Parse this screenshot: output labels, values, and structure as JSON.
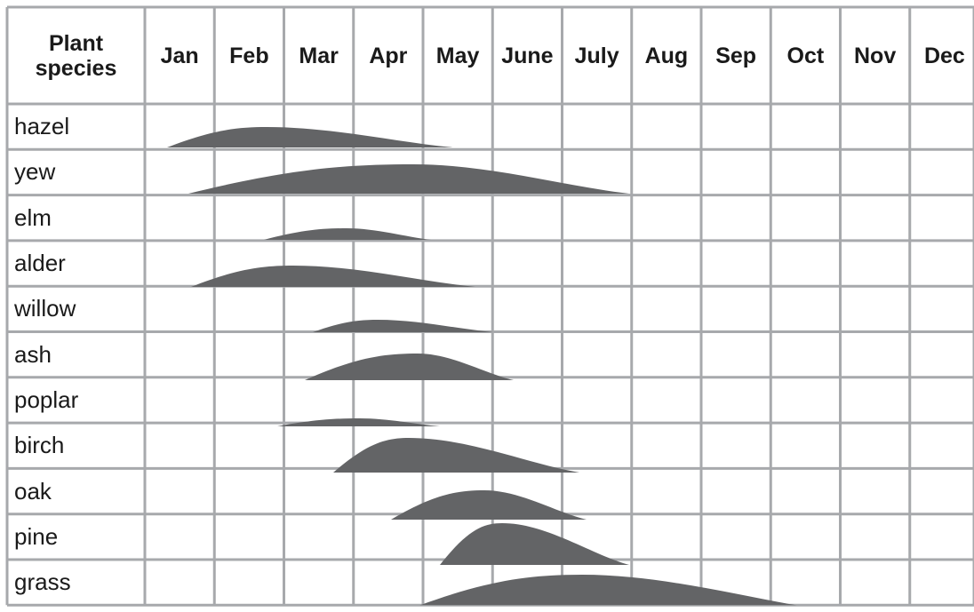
{
  "table": {
    "columns": [
      "Plant species",
      "Jan",
      "Feb",
      "Mar",
      "Apr",
      "May",
      "June",
      "July",
      "Aug",
      "Sep",
      "Oct",
      "Nov",
      "Dec"
    ],
    "rows": [
      "hazel",
      "yew",
      "elm",
      "alder",
      "willow",
      "ash",
      "poplar",
      "birch",
      "oak",
      "pine",
      "grass"
    ]
  }
}
